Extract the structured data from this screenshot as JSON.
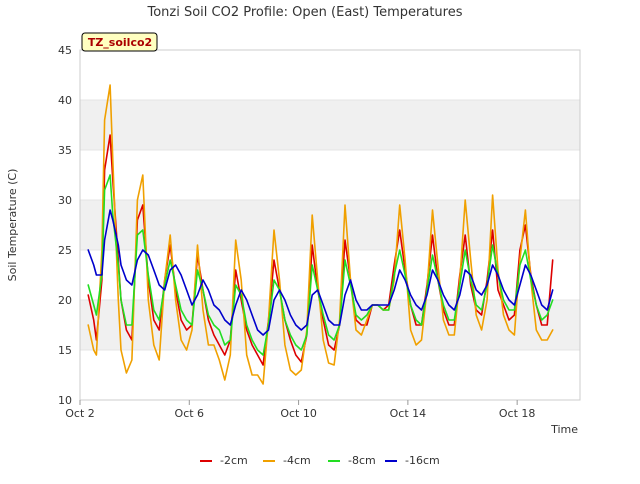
{
  "chart_data": {
    "type": "line",
    "title": "Tonzi Soil CO2 Profile: Open (East) Temperatures",
    "xlabel": "Time",
    "ylabel": "Soil Temperature (C)",
    "tag_label": "TZ_soilco2",
    "xlim": [
      0,
      18.3
    ],
    "ylim": [
      10,
      45
    ],
    "yticks": [
      10,
      15,
      20,
      25,
      30,
      35,
      40,
      45
    ],
    "xticks": [
      {
        "value": 0,
        "label": "Oct 2"
      },
      {
        "value": 4,
        "label": "Oct 6"
      },
      {
        "value": 8,
        "label": "Oct 10"
      },
      {
        "value": 12,
        "label": "Oct 14"
      },
      {
        "value": 16,
        "label": "Oct 18"
      }
    ],
    "grid": "horizontal bands",
    "legend_position": "bottom",
    "series": [
      {
        "name": "-2cm",
        "color": "#dd0000",
        "x": [
          0.3,
          0.5,
          0.6,
          0.8,
          0.9,
          1.1,
          1.2,
          1.4,
          1.5,
          1.7,
          1.9,
          2.1,
          2.3,
          2.5,
          2.7,
          2.9,
          3.1,
          3.3,
          3.5,
          3.7,
          3.9,
          4.1,
          4.3,
          4.5,
          4.7,
          4.9,
          5.1,
          5.3,
          5.5,
          5.7,
          5.9,
          6.1,
          6.3,
          6.5,
          6.7,
          6.9,
          7.1,
          7.3,
          7.5,
          7.7,
          7.9,
          8.1,
          8.3,
          8.5,
          8.7,
          8.9,
          9.1,
          9.3,
          9.5,
          9.7,
          9.9,
          10.1,
          10.3,
          10.5,
          10.7,
          10.9,
          11.1,
          11.3,
          11.5,
          11.7,
          11.9,
          12.1,
          12.3,
          12.5,
          12.7,
          12.9,
          13.1,
          13.3,
          13.5,
          13.7,
          13.9,
          14.1,
          14.3,
          14.5,
          14.7,
          14.9,
          15.1,
          15.3,
          15.5,
          15.7,
          15.9,
          16.1,
          16.3,
          16.5,
          16.7,
          16.9,
          17.1,
          17.3
        ],
        "values": [
          20.5,
          18.0,
          16.0,
          22.0,
          33.0,
          36.5,
          32.0,
          24.0,
          20.0,
          17.0,
          16.0,
          28.0,
          29.5,
          22.0,
          18.0,
          17.0,
          22.0,
          25.5,
          21.0,
          18.0,
          17.0,
          17.5,
          24.5,
          21.0,
          18.0,
          16.5,
          15.5,
          14.5,
          16.0,
          23.0,
          20.0,
          17.0,
          15.5,
          14.5,
          13.5,
          18.0,
          24.0,
          21.0,
          18.0,
          16.0,
          14.5,
          13.8,
          16.5,
          25.5,
          21.0,
          18.0,
          15.5,
          15.0,
          17.5,
          26.0,
          22.0,
          18.0,
          17.5,
          17.5,
          19.5,
          19.5,
          19.0,
          19.5,
          23.5,
          27.0,
          23.0,
          19.5,
          17.5,
          17.5,
          21.5,
          26.5,
          22.0,
          19.0,
          17.5,
          17.5,
          22.5,
          26.5,
          21.5,
          19.0,
          18.5,
          22.0,
          27.0,
          21.0,
          19.5,
          18.0,
          18.5,
          25.0,
          27.5,
          22.5,
          19.5,
          17.5,
          17.5,
          24.0
        ]
      },
      {
        "name": "-4cm",
        "color": "#f0a000",
        "x": [
          0.3,
          0.5,
          0.6,
          0.8,
          0.9,
          1.1,
          1.2,
          1.4,
          1.5,
          1.7,
          1.9,
          2.1,
          2.3,
          2.5,
          2.7,
          2.9,
          3.1,
          3.3,
          3.5,
          3.7,
          3.9,
          4.1,
          4.3,
          4.5,
          4.7,
          4.9,
          5.1,
          5.3,
          5.5,
          5.7,
          5.9,
          6.1,
          6.3,
          6.5,
          6.7,
          6.9,
          7.1,
          7.3,
          7.5,
          7.7,
          7.9,
          8.1,
          8.3,
          8.5,
          8.7,
          8.9,
          9.1,
          9.3,
          9.5,
          9.7,
          9.9,
          10.1,
          10.3,
          10.5,
          10.7,
          10.9,
          11.1,
          11.3,
          11.5,
          11.7,
          11.9,
          12.1,
          12.3,
          12.5,
          12.7,
          12.9,
          13.1,
          13.3,
          13.5,
          13.7,
          13.9,
          14.1,
          14.3,
          14.5,
          14.7,
          14.9,
          15.1,
          15.3,
          15.5,
          15.7,
          15.9,
          16.1,
          16.3,
          16.5,
          16.7,
          16.9,
          17.1,
          17.3
        ],
        "values": [
          17.5,
          15.0,
          14.5,
          25.0,
          38.0,
          41.5,
          34.0,
          20.0,
          15.0,
          12.7,
          14.0,
          30.0,
          32.5,
          20.0,
          15.5,
          14.0,
          22.0,
          26.5,
          20.0,
          16.0,
          15.0,
          17.0,
          25.5,
          19.0,
          15.5,
          15.5,
          14.0,
          12.0,
          14.5,
          26.0,
          22.0,
          14.5,
          12.5,
          12.5,
          11.6,
          18.0,
          27.0,
          22.0,
          15.5,
          13.0,
          12.5,
          13.0,
          17.0,
          28.5,
          22.0,
          16.0,
          13.7,
          13.5,
          18.0,
          29.5,
          22.0,
          17.0,
          16.5,
          18.0,
          19.5,
          19.5,
          19.0,
          19.0,
          22.0,
          29.5,
          24.0,
          17.0,
          15.5,
          16.0,
          21.0,
          29.0,
          23.5,
          18.0,
          16.5,
          16.5,
          22.0,
          30.0,
          24.0,
          18.5,
          17.0,
          20.0,
          30.5,
          23.0,
          18.5,
          17.0,
          16.5,
          24.0,
          29.0,
          22.0,
          17.0,
          16.0,
          16.0,
          17.0
        ]
      },
      {
        "name": "-8cm",
        "color": "#22dd22",
        "x": [
          0.3,
          0.5,
          0.6,
          0.8,
          0.9,
          1.1,
          1.2,
          1.4,
          1.5,
          1.7,
          1.9,
          2.1,
          2.3,
          2.5,
          2.7,
          2.9,
          3.1,
          3.3,
          3.5,
          3.7,
          3.9,
          4.1,
          4.3,
          4.5,
          4.7,
          4.9,
          5.1,
          5.3,
          5.5,
          5.7,
          5.9,
          6.1,
          6.3,
          6.5,
          6.7,
          6.9,
          7.1,
          7.3,
          7.5,
          7.7,
          7.9,
          8.1,
          8.3,
          8.5,
          8.7,
          8.9,
          9.1,
          9.3,
          9.5,
          9.7,
          9.9,
          10.1,
          10.3,
          10.5,
          10.7,
          10.9,
          11.1,
          11.3,
          11.5,
          11.7,
          11.9,
          12.1,
          12.3,
          12.5,
          12.7,
          12.9,
          13.1,
          13.3,
          13.5,
          13.7,
          13.9,
          14.1,
          14.3,
          14.5,
          14.7,
          14.9,
          15.1,
          15.3,
          15.5,
          15.7,
          15.9,
          16.1,
          16.3,
          16.5,
          16.7,
          16.9,
          17.1,
          17.3
        ],
        "values": [
          21.5,
          19.5,
          18.5,
          22.5,
          31.0,
          32.5,
          28.5,
          23.5,
          20.0,
          17.5,
          17.5,
          26.5,
          27.0,
          22.5,
          19.0,
          18.0,
          21.5,
          24.0,
          21.5,
          19.0,
          18.0,
          17.5,
          23.0,
          21.0,
          18.5,
          17.5,
          17.0,
          15.5,
          16.0,
          21.5,
          20.5,
          17.5,
          16.0,
          15.0,
          14.5,
          17.5,
          22.0,
          21.0,
          18.0,
          16.5,
          15.5,
          15.0,
          16.5,
          23.5,
          21.0,
          18.5,
          16.5,
          16.0,
          17.5,
          24.0,
          21.5,
          18.5,
          18.0,
          18.5,
          19.5,
          19.5,
          19.0,
          19.0,
          22.5,
          25.0,
          22.5,
          19.5,
          18.0,
          17.5,
          21.0,
          24.5,
          22.0,
          19.5,
          18.0,
          18.0,
          21.5,
          25.0,
          22.0,
          19.5,
          19.0,
          21.5,
          25.5,
          22.5,
          20.0,
          19.0,
          19.0,
          23.5,
          25.0,
          22.0,
          19.5,
          18.0,
          18.5,
          20.0
        ]
      },
      {
        "name": "-16cm",
        "color": "#0000cc",
        "x": [
          0.3,
          0.5,
          0.6,
          0.8,
          0.9,
          1.1,
          1.2,
          1.4,
          1.5,
          1.7,
          1.9,
          2.1,
          2.3,
          2.5,
          2.7,
          2.9,
          3.1,
          3.3,
          3.5,
          3.7,
          3.9,
          4.1,
          4.3,
          4.5,
          4.7,
          4.9,
          5.1,
          5.3,
          5.5,
          5.7,
          5.9,
          6.1,
          6.3,
          6.5,
          6.7,
          6.9,
          7.1,
          7.3,
          7.5,
          7.7,
          7.9,
          8.1,
          8.3,
          8.5,
          8.7,
          8.9,
          9.1,
          9.3,
          9.5,
          9.7,
          9.9,
          10.1,
          10.3,
          10.5,
          10.7,
          10.9,
          11.1,
          11.3,
          11.5,
          11.7,
          11.9,
          12.1,
          12.3,
          12.5,
          12.7,
          12.9,
          13.1,
          13.3,
          13.5,
          13.7,
          13.9,
          14.1,
          14.3,
          14.5,
          14.7,
          14.9,
          15.1,
          15.3,
          15.5,
          15.7,
          15.9,
          16.1,
          16.3,
          16.5,
          16.7,
          16.9,
          17.1,
          17.3
        ],
        "values": [
          25.0,
          23.5,
          22.5,
          22.5,
          26.0,
          29.0,
          28.0,
          25.5,
          23.5,
          22.0,
          21.5,
          24.0,
          25.0,
          24.5,
          23.0,
          21.5,
          21.0,
          23.0,
          23.5,
          22.5,
          21.0,
          19.5,
          20.5,
          22.0,
          21.0,
          19.5,
          19.0,
          18.0,
          17.5,
          19.5,
          21.0,
          20.0,
          18.5,
          17.0,
          16.5,
          17.0,
          20.0,
          21.0,
          20.0,
          18.5,
          17.5,
          17.0,
          17.5,
          20.5,
          21.0,
          19.5,
          18.0,
          17.5,
          17.5,
          20.5,
          22.0,
          20.0,
          19.0,
          19.0,
          19.5,
          19.5,
          19.5,
          19.5,
          21.0,
          23.0,
          22.0,
          20.5,
          19.5,
          19.0,
          20.5,
          23.0,
          22.0,
          20.5,
          19.5,
          19.0,
          20.5,
          23.0,
          22.5,
          21.0,
          20.5,
          21.5,
          23.5,
          22.5,
          21.0,
          20.0,
          19.5,
          21.5,
          23.5,
          22.5,
          21.0,
          19.5,
          19.0,
          21.0
        ]
      }
    ]
  }
}
